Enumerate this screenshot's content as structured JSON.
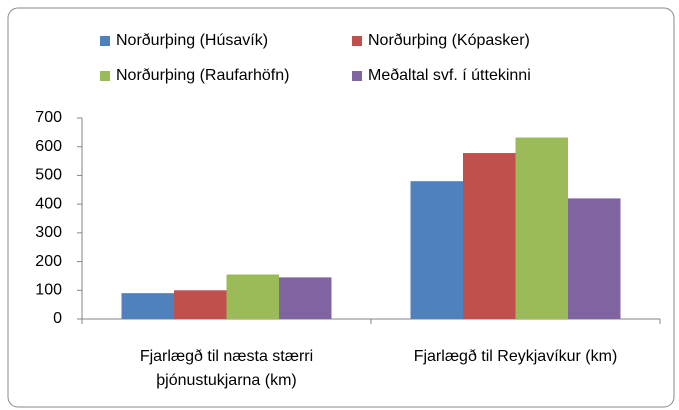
{
  "chart_data": {
    "type": "bar",
    "categories": [
      "Fjarlægð til næsta stærri þjónustukjarna (km)",
      "Fjarlægð til Reykjavíkur (km)"
    ],
    "series": [
      {
        "name": "Norðurþing (Húsavík)",
        "color": "#4f81bd",
        "values": [
          90,
          480
        ]
      },
      {
        "name": "Norðurþing (Kópasker)",
        "color": "#c0504d",
        "values": [
          100,
          578
        ]
      },
      {
        "name": "Norðurþing (Raufarhöfn)",
        "color": "#9bbb59",
        "values": [
          155,
          632
        ]
      },
      {
        "name": "Meðaltal svf. í úttekinni",
        "color": "#8064a2",
        "values": [
          145,
          420
        ]
      }
    ],
    "ylim": [
      0,
      700
    ],
    "yticks": [
      0,
      100,
      200,
      300,
      400,
      500,
      600,
      700
    ],
    "grid": false
  }
}
